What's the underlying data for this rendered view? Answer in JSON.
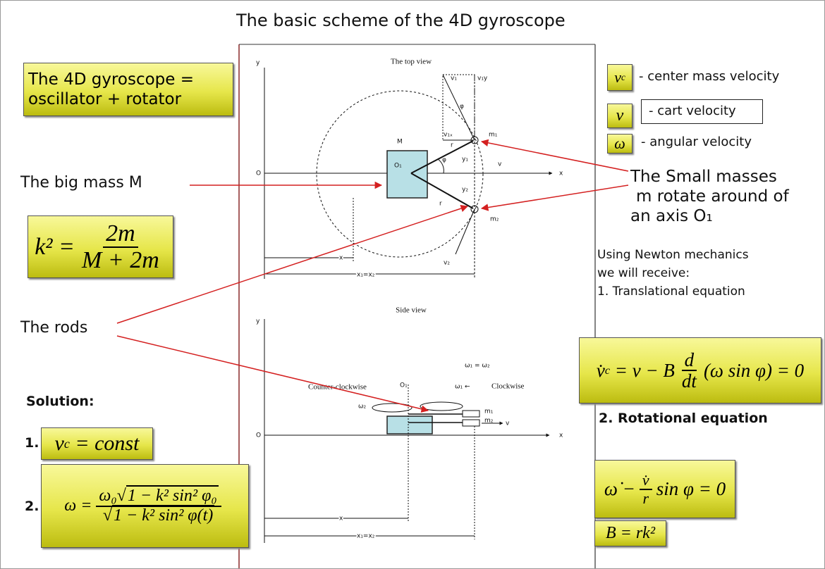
{
  "title": "The basic scheme of the 4D gyroscope",
  "left": {
    "headline": [
      "The 4D gyroscope =",
      "oscillator + rotator"
    ],
    "big_mass": "The big mass M",
    "rods": "The rods",
    "solution": "Solution:",
    "sol1_num": "1.",
    "sol2_num": "2."
  },
  "legend": [
    {
      "symbol": "v",
      "sub": "c",
      "text": "- center mass velocity"
    },
    {
      "symbol": "v",
      "text": "- cart velocity"
    },
    {
      "symbol": "ω",
      "text": "- angular velocity"
    }
  ],
  "right": {
    "small_masses": [
      "The Small masses",
      "m rotate around of",
      "an axis O₁"
    ],
    "newton": [
      "Using Newton mechanics",
      "we will receive:",
      "1. Translational equation"
    ],
    "rotational_heading": "2. Rotational equation"
  },
  "formulas": {
    "k_squared": {
      "lhs": "k² =",
      "num": "2m",
      "den": "M + 2m"
    },
    "vc_const": {
      "v": "v",
      "sub": "c",
      "rest": "= const"
    },
    "omega": {
      "lhs": "ω =",
      "num_coef": "ω₀",
      "num_root": "1 − k² sin² φ₀",
      "den_root": "1 − k² sin² φ(t)"
    },
    "translational": {
      "lhs": "v̇",
      "sub": "c",
      "mid": "= v − B",
      "num": "d",
      "den": "dt",
      "tail": "(ω sin φ) = 0"
    },
    "rotational": {
      "lhs": "ω̇ −",
      "num": "v̇",
      "den": "r",
      "tail": "sin φ = 0"
    },
    "b": "B = rk²"
  },
  "top_view": {
    "title": "The top view",
    "y": "y",
    "o": "O",
    "x_axis": "x",
    "M": "M",
    "O1": "O₁",
    "v1": "v₁",
    "v1y": "v₁y",
    "phi_top": "φ",
    "v1x": "v₁ₓ",
    "r1": "r",
    "m1": "m₁",
    "y1": "y₁",
    "phi": "φ",
    "v": "v",
    "y2": "y₂",
    "r2": "r",
    "m2": "m₂",
    "v2": "v₂",
    "x": "x",
    "x1x2": "x₁=x₂"
  },
  "side_view": {
    "title": "Side view",
    "y": "y",
    "o": "O",
    "x_axis": "x",
    "omega_eq": "ω₁ = ω₂",
    "ccw": "Counter-clockwise",
    "O1": "O₁",
    "omega1": "ω₁ ←",
    "cw": "Clockwise",
    "omega2": "ω₂",
    "m1": "m₁",
    "m2": "m₂",
    "v": "v",
    "x": "x",
    "x1x2": "x₁=x₂"
  }
}
